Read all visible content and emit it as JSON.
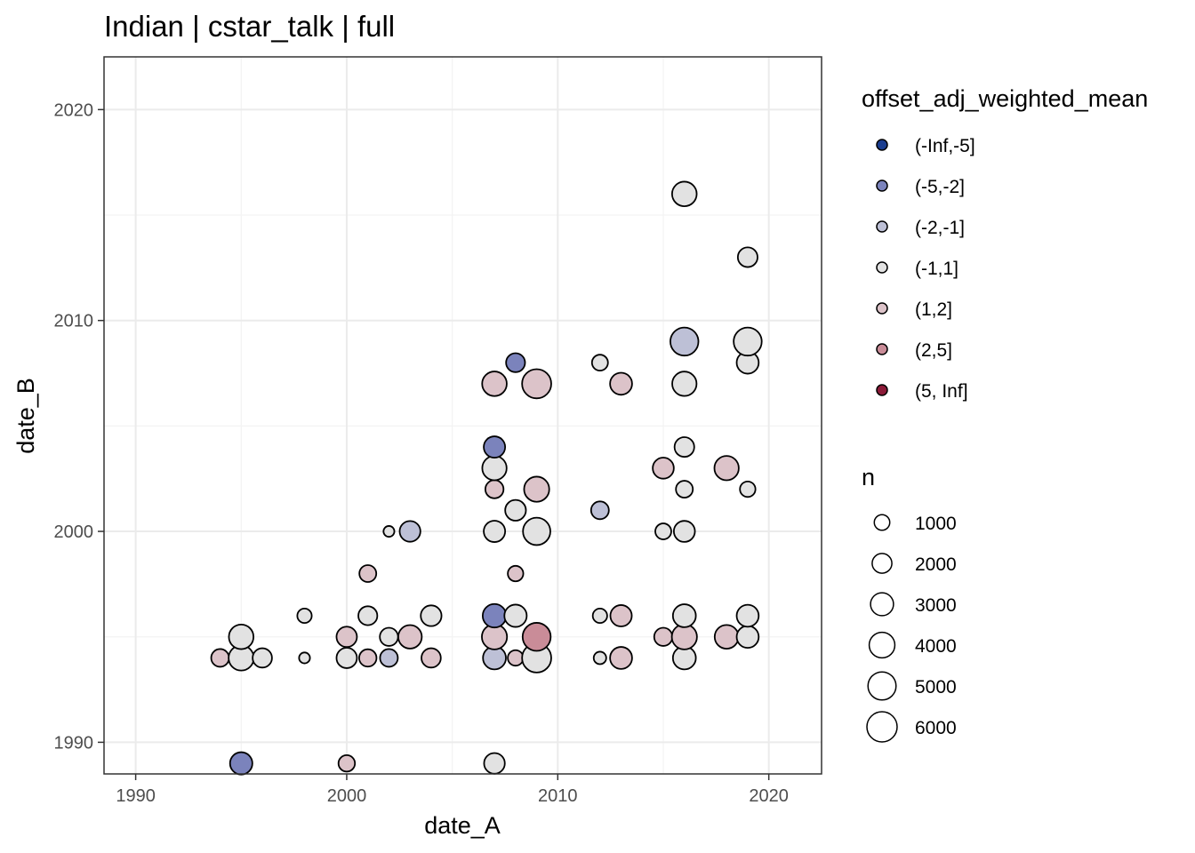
{
  "chart_data": {
    "type": "scatter",
    "title": "Indian | cstar_talk | full",
    "xlabel": "date_A",
    "ylabel": "date_B",
    "xlim": [
      1988.5,
      2022.5
    ],
    "ylim": [
      1988.5,
      2022.5
    ],
    "x_ticks": [
      1990,
      2000,
      2010,
      2020
    ],
    "y_ticks": [
      1990,
      2000,
      2010,
      2020
    ],
    "x_tick_labels": [
      "1990",
      "2000",
      "2010",
      "2020"
    ],
    "y_tick_labels": [
      "1990",
      "2000",
      "2010",
      "2020"
    ],
    "color_legend": {
      "title": "offset_adj_weighted_mean",
      "categories": [
        {
          "label": "(-Inf,-5]",
          "color": "#1a3d8f"
        },
        {
          "label": "(-5,-2]",
          "color": "#7b83bc"
        },
        {
          "label": "(-2,-1]",
          "color": "#bdc0d6"
        },
        {
          "label": "(-1,1]",
          "color": "#e2e2e2"
        },
        {
          "label": "(1,2]",
          "color": "#dcc3c9"
        },
        {
          "label": "(2,5]",
          "color": "#c98c98"
        },
        {
          "label": "(5, Inf]",
          "color": "#8b1a38"
        }
      ]
    },
    "size_legend": {
      "title": "n",
      "values": [
        1000,
        2000,
        3000,
        4000,
        5000,
        6000
      ],
      "labels": [
        "1000",
        "2000",
        "3000",
        "4000",
        "5000",
        "6000"
      ]
    },
    "points": [
      {
        "x": 1995,
        "y": 1989,
        "n": 2800,
        "bin": "(-5,-2]"
      },
      {
        "x": 2000,
        "y": 1989,
        "n": 1200,
        "bin": "(1,2]"
      },
      {
        "x": 2007,
        "y": 1989,
        "n": 2300,
        "bin": "(-1,1]"
      },
      {
        "x": 1994,
        "y": 1994,
        "n": 1500,
        "bin": "(1,2]"
      },
      {
        "x": 1995,
        "y": 1994,
        "n": 3800,
        "bin": "(-1,1]"
      },
      {
        "x": 1996,
        "y": 1994,
        "n": 1900,
        "bin": "(-1,1]"
      },
      {
        "x": 1998,
        "y": 1994,
        "n": 300,
        "bin": "(-1,1]"
      },
      {
        "x": 2000,
        "y": 1994,
        "n": 2200,
        "bin": "(-1,1]"
      },
      {
        "x": 2001,
        "y": 1994,
        "n": 1400,
        "bin": "(1,2]"
      },
      {
        "x": 2002,
        "y": 1994,
        "n": 1500,
        "bin": "(-2,-1]"
      },
      {
        "x": 2004,
        "y": 1994,
        "n": 1900,
        "bin": "(1,2]"
      },
      {
        "x": 2007,
        "y": 1994,
        "n": 3000,
        "bin": "(-2,-1]"
      },
      {
        "x": 2008,
        "y": 1994,
        "n": 1000,
        "bin": "(1,2]"
      },
      {
        "x": 2009,
        "y": 1994,
        "n": 5500,
        "bin": "(-1,1]"
      },
      {
        "x": 2012,
        "y": 1994,
        "n": 500,
        "bin": "(-1,1]"
      },
      {
        "x": 2013,
        "y": 1994,
        "n": 2700,
        "bin": "(1,2]"
      },
      {
        "x": 2016,
        "y": 1994,
        "n": 3000,
        "bin": "(-1,1]"
      },
      {
        "x": 1995,
        "y": 1995,
        "n": 3600,
        "bin": "(-1,1]"
      },
      {
        "x": 2000,
        "y": 1995,
        "n": 2200,
        "bin": "(1,2]"
      },
      {
        "x": 2002,
        "y": 1995,
        "n": 1600,
        "bin": "(-1,1]"
      },
      {
        "x": 2003,
        "y": 1995,
        "n": 3200,
        "bin": "(1,2]"
      },
      {
        "x": 2007,
        "y": 1995,
        "n": 3800,
        "bin": "(1,2]"
      },
      {
        "x": 2009,
        "y": 1995,
        "n": 5000,
        "bin": "(2,5]"
      },
      {
        "x": 2015,
        "y": 1995,
        "n": 1600,
        "bin": "(1,2]"
      },
      {
        "x": 2016,
        "y": 1995,
        "n": 3800,
        "bin": "(1,2]"
      },
      {
        "x": 2018,
        "y": 1995,
        "n": 3300,
        "bin": "(1,2]"
      },
      {
        "x": 2019,
        "y": 1995,
        "n": 2700,
        "bin": "(-1,1]"
      },
      {
        "x": 1998,
        "y": 1996,
        "n": 800,
        "bin": "(-1,1]"
      },
      {
        "x": 2001,
        "y": 1996,
        "n": 1800,
        "bin": "(-1,1]"
      },
      {
        "x": 2004,
        "y": 1996,
        "n": 2300,
        "bin": "(-1,1]"
      },
      {
        "x": 2007,
        "y": 1996,
        "n": 3200,
        "bin": "(-5,-2]"
      },
      {
        "x": 2008,
        "y": 1996,
        "n": 2800,
        "bin": "(-1,1]"
      },
      {
        "x": 2012,
        "y": 1996,
        "n": 800,
        "bin": "(-1,1]"
      },
      {
        "x": 2013,
        "y": 1996,
        "n": 2500,
        "bin": "(1,2]"
      },
      {
        "x": 2016,
        "y": 1996,
        "n": 3000,
        "bin": "(-1,1]"
      },
      {
        "x": 2019,
        "y": 1996,
        "n": 2700,
        "bin": "(-1,1]"
      },
      {
        "x": 2001,
        "y": 1998,
        "n": 1300,
        "bin": "(1,2]"
      },
      {
        "x": 2008,
        "y": 1998,
        "n": 1000,
        "bin": "(1,2]"
      },
      {
        "x": 2002,
        "y": 2000,
        "n": 300,
        "bin": "(-1,1]"
      },
      {
        "x": 2003,
        "y": 2000,
        "n": 2300,
        "bin": "(-2,-1]"
      },
      {
        "x": 2007,
        "y": 2000,
        "n": 2500,
        "bin": "(-1,1]"
      },
      {
        "x": 2009,
        "y": 2000,
        "n": 4700,
        "bin": "(-1,1]"
      },
      {
        "x": 2015,
        "y": 2000,
        "n": 1100,
        "bin": "(-1,1]"
      },
      {
        "x": 2016,
        "y": 2000,
        "n": 2400,
        "bin": "(-1,1]"
      },
      {
        "x": 2008,
        "y": 2001,
        "n": 2300,
        "bin": "(-1,1]"
      },
      {
        "x": 2012,
        "y": 2001,
        "n": 1500,
        "bin": "(-2,-1]"
      },
      {
        "x": 2007,
        "y": 2002,
        "n": 1600,
        "bin": "(1,2]"
      },
      {
        "x": 2009,
        "y": 2002,
        "n": 3800,
        "bin": "(1,2]"
      },
      {
        "x": 2016,
        "y": 2002,
        "n": 1300,
        "bin": "(-1,1]"
      },
      {
        "x": 2019,
        "y": 2002,
        "n": 1000,
        "bin": "(-1,1]"
      },
      {
        "x": 2007,
        "y": 2003,
        "n": 3500,
        "bin": "(-1,1]"
      },
      {
        "x": 2015,
        "y": 2003,
        "n": 2400,
        "bin": "(1,2]"
      },
      {
        "x": 2018,
        "y": 2003,
        "n": 3500,
        "bin": "(1,2]"
      },
      {
        "x": 2007,
        "y": 2004,
        "n": 2500,
        "bin": "(-5,-2]"
      },
      {
        "x": 2016,
        "y": 2004,
        "n": 2000,
        "bin": "(-1,1]"
      },
      {
        "x": 2007,
        "y": 2007,
        "n": 3600,
        "bin": "(1,2]"
      },
      {
        "x": 2009,
        "y": 2007,
        "n": 5500,
        "bin": "(1,2]"
      },
      {
        "x": 2013,
        "y": 2007,
        "n": 2700,
        "bin": "(1,2]"
      },
      {
        "x": 2016,
        "y": 2007,
        "n": 3500,
        "bin": "(-1,1]"
      },
      {
        "x": 2008,
        "y": 2008,
        "n": 1800,
        "bin": "(-5,-2]"
      },
      {
        "x": 2012,
        "y": 2008,
        "n": 1100,
        "bin": "(-1,1]"
      },
      {
        "x": 2019,
        "y": 2008,
        "n": 2700,
        "bin": "(-1,1]"
      },
      {
        "x": 2016,
        "y": 2009,
        "n": 5000,
        "bin": "(-2,-1]"
      },
      {
        "x": 2019,
        "y": 2009,
        "n": 5000,
        "bin": "(-1,1]"
      },
      {
        "x": 2019,
        "y": 2013,
        "n": 2000,
        "bin": "(-1,1]"
      },
      {
        "x": 2016,
        "y": 2016,
        "n": 3600,
        "bin": "(-1,1]"
      }
    ]
  }
}
